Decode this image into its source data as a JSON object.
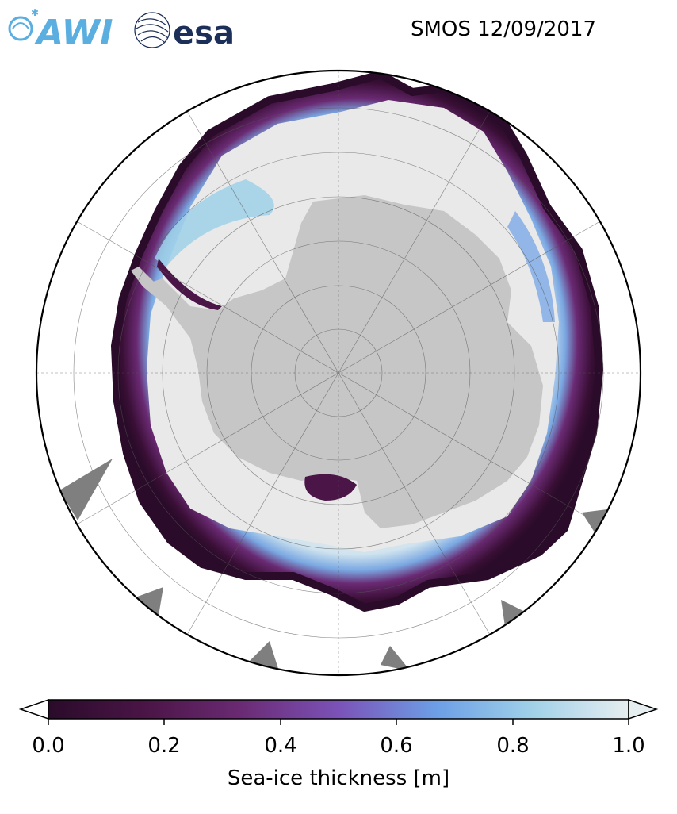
{
  "header": {
    "title": "SMOS 12/09/2017",
    "logos": [
      {
        "name": "AWI",
        "text": "AWI",
        "color": "#5aaee0"
      },
      {
        "name": "esa",
        "text": "esa",
        "color": "#1b2f59"
      }
    ]
  },
  "map": {
    "projection": "south-polar-stereographic",
    "land_color": "#c6c6c6",
    "nodata_color": "#7f7f7f",
    "thick_ice_color": "#e9e9e9",
    "grid": true
  },
  "colorbar": {
    "label": "Sea-ice thickness [m]",
    "min": 0.0,
    "max": 1.0,
    "extend": "both",
    "ticks": [
      "0.0",
      "0.2",
      "0.4",
      "0.6",
      "0.8",
      "1.0"
    ],
    "colors": [
      "#2a0b2a",
      "#4b1547",
      "#6a2a73",
      "#7b52b8",
      "#6c9fe6",
      "#9fd0e8",
      "#e6eef0"
    ]
  }
}
